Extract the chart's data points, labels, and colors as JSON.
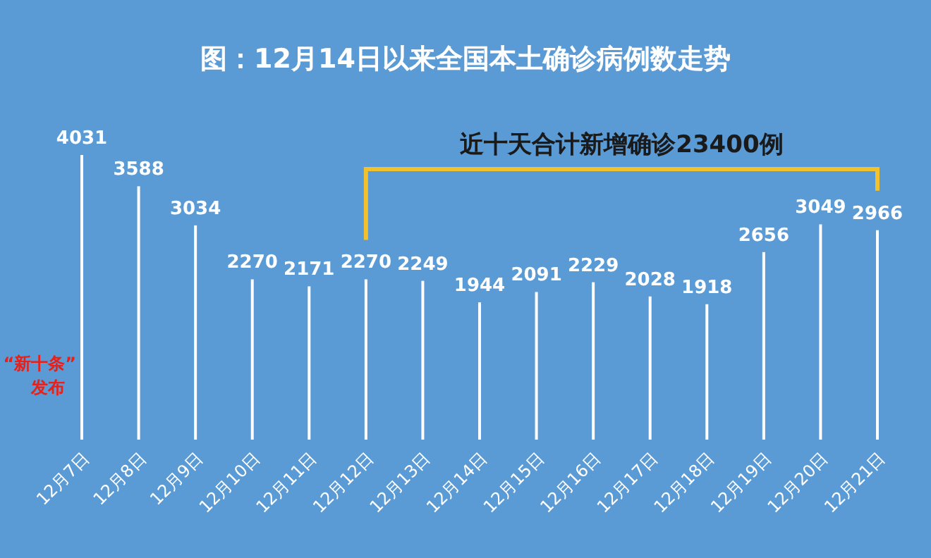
{
  "chart_data": {
    "type": "bar",
    "title": "图：12月14日以来全国本土确诊病例数走势",
    "categories": [
      "12月7日",
      "12月8日",
      "12月9日",
      "12月10日",
      "12月11日",
      "12月12日",
      "12月13日",
      "12月14日",
      "12月15日",
      "12月16日",
      "12月17日",
      "12月18日",
      "12月19日",
      "12月20日",
      "12月21日"
    ],
    "values": [
      4031,
      3588,
      3034,
      2270,
      2171,
      2270,
      2249,
      1944,
      2091,
      2229,
      2028,
      1918,
      2656,
      3049,
      2966
    ],
    "color": "#ffffff",
    "data_labels": true,
    "annotations": [
      "“新十条”发布",
      "近十天合计新增确诊23400例"
    ]
  }
}
